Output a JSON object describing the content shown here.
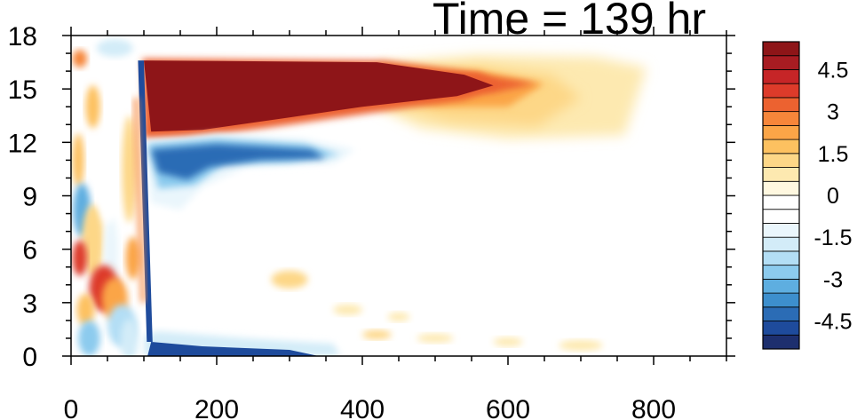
{
  "chart_data": {
    "type": "heatmap",
    "title": "Time = 139 hr",
    "xlabel": "",
    "ylabel": "",
    "xlim": [
      0,
      900
    ],
    "ylim": [
      0,
      18
    ],
    "x_ticks": [
      0,
      200,
      400,
      600,
      800
    ],
    "x_tick_labels": [
      "0",
      "200",
      "400",
      "600",
      "800"
    ],
    "y_ticks": [
      0,
      3,
      6,
      9,
      12,
      15,
      18
    ],
    "y_tick_labels": [
      "0",
      "3",
      "6",
      "9",
      "12",
      "15",
      "18"
    ],
    "grid": false,
    "colorbar": {
      "levels": [
        -5.5,
        -5,
        -4.5,
        -4,
        -3.5,
        -3,
        -2.5,
        -2,
        -1.5,
        -1,
        -0.5,
        0,
        0.5,
        1,
        1.5,
        2,
        2.5,
        3,
        3.5,
        4,
        4.5,
        5,
        5.5
      ],
      "labels": [
        "-4.5",
        "-3",
        "-1.5",
        "0",
        "1.5",
        "3",
        "4.5"
      ],
      "label_values": [
        -4.5,
        -3,
        -1.5,
        0,
        1.5,
        3,
        4.5
      ],
      "colors": [
        "#1d2f6e",
        "#1e4b9c",
        "#2b6cb5",
        "#3d8fcd",
        "#5eaee0",
        "#8ccbee",
        "#b3def5",
        "#d3ecf8",
        "#eaf6fc",
        "#ffffff",
        "#ffffff",
        "#fff8e0",
        "#fde9b0",
        "#fdd787",
        "#fdc160",
        "#fba547",
        "#f6863a",
        "#ec6230",
        "#dd3b2a",
        "#c62527",
        "#a81c22",
        "#8e1518"
      ]
    },
    "features": [
      {
        "name": "upper warm anomaly",
        "value": 5.5,
        "x": [
          100,
          590
        ],
        "y_center": 15.2
      },
      {
        "name": "warm tail",
        "value": 1.5,
        "x": [
          430,
          790
        ],
        "y_center": 14.5
      },
      {
        "name": "lower cold band",
        "value": -3.5,
        "x": [
          100,
          370
        ],
        "y_center": 11.2
      },
      {
        "name": "surface cold band",
        "value": -5,
        "x": [
          100,
          340
        ],
        "y_center": 0.2
      },
      {
        "name": "front",
        "value": -5,
        "x": [
          95,
          110
        ],
        "y": [
          1,
          16.5
        ]
      }
    ]
  }
}
